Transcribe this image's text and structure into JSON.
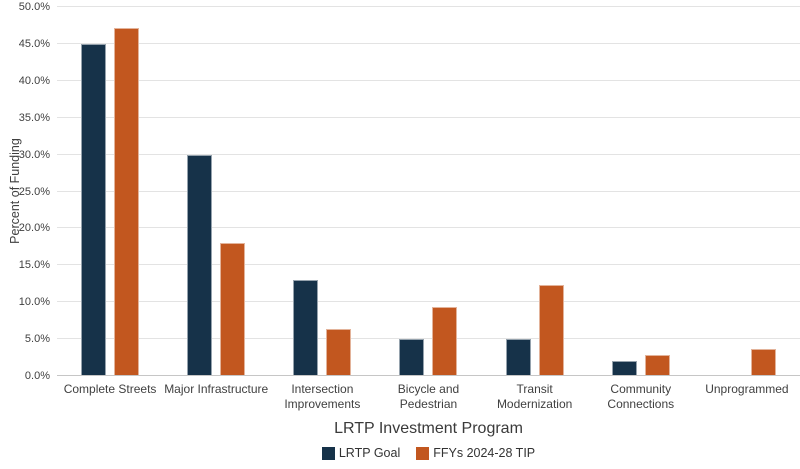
{
  "chart_data": {
    "type": "bar",
    "title": "",
    "xlabel": "LRTP Investment Program",
    "ylabel": "Percent of Funding",
    "categories": [
      "Complete Streets",
      "Major Infrastructure",
      "Intersection\nImprovements",
      "Bicycle and\nPedestrian",
      "Transit\nModernization",
      "Community\nConnections",
      "Unprogrammed"
    ],
    "series": [
      {
        "name": "LRTP Goal",
        "color": "#163249",
        "values": [
          45.0,
          30.0,
          13.0,
          5.0,
          5.0,
          2.0,
          0.0
        ]
      },
      {
        "name": "FFYs 2024-28 TIP",
        "color": "#C2571F",
        "values": [
          47.2,
          18.0,
          6.4,
          9.4,
          12.4,
          2.8,
          3.6
        ]
      }
    ],
    "ylim": [
      0,
      50
    ],
    "yticks": [
      0,
      5,
      10,
      15,
      20,
      25,
      30,
      35,
      40,
      45,
      50
    ],
    "ytick_format": "one-decimal-percent",
    "grid": "horizontal",
    "legend_position": "bottom"
  },
  "colors": {
    "bar_navy": "#163249",
    "bar_orange": "#C2571F",
    "gridline": "#E3E3E3",
    "axis_line": "#C6C6C6",
    "text": "#404040"
  }
}
